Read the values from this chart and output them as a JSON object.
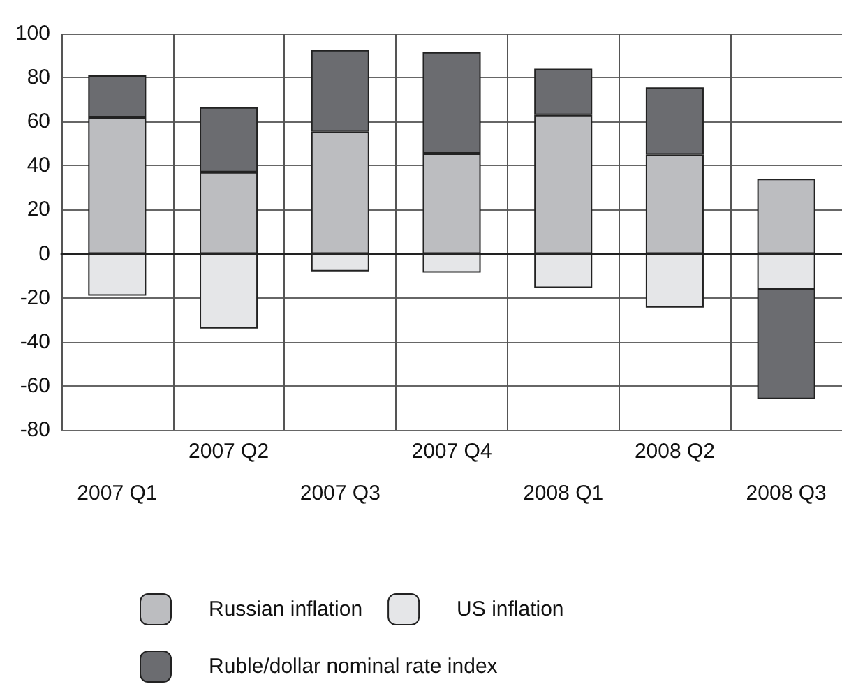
{
  "chart_data": {
    "type": "bar",
    "stacked": true,
    "categories": [
      "2007 Q1",
      "2007 Q2",
      "2007 Q3",
      "2007 Q4",
      "2008 Q1",
      "2008 Q2",
      "2008 Q3"
    ],
    "series": [
      {
        "name": "Russian inflation",
        "color": "#bcbdc0",
        "values": [
          62,
          37,
          55.5,
          45.5,
          63,
          45,
          34
        ]
      },
      {
        "name": "US inflation",
        "color": "#e5e6e8",
        "values": [
          -19,
          -34,
          -8,
          -8.5,
          -15.5,
          -24.5,
          -16
        ]
      },
      {
        "name": "Ruble/dollar nominal rate index",
        "color": "#6b6c70",
        "values": [
          19,
          29.5,
          37,
          46,
          21,
          30.5,
          -50
        ]
      }
    ],
    "ylim": [
      -80,
      100
    ],
    "yticks": [
      -80,
      -60,
      -40,
      -20,
      0,
      20,
      40,
      60,
      80,
      100
    ],
    "grid": true,
    "legend": "bottom"
  }
}
